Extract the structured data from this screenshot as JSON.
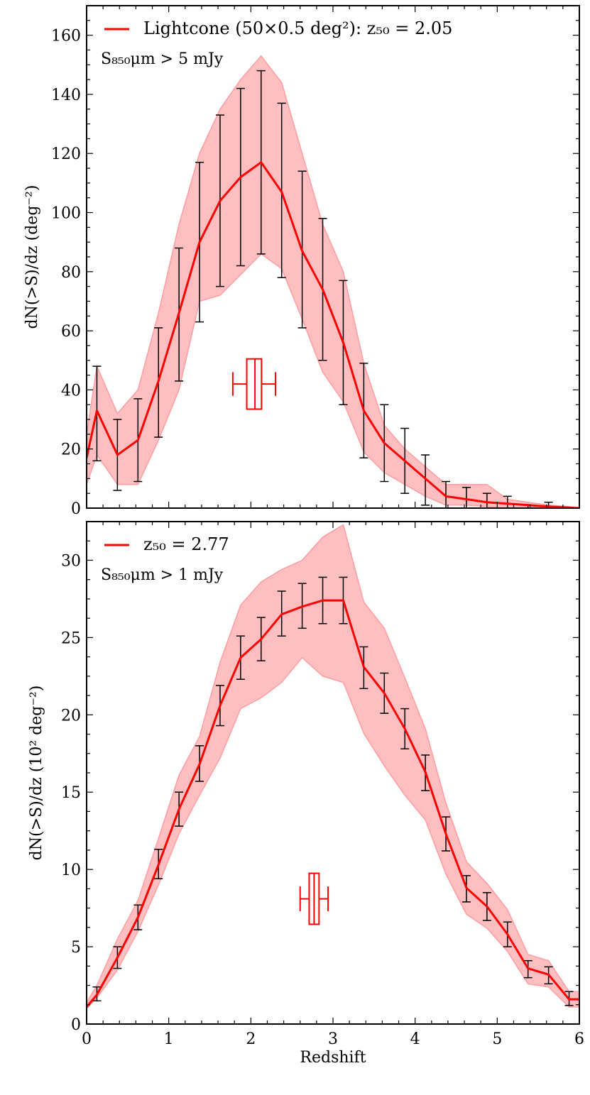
{
  "colors": {
    "line": "#ff0000",
    "band": "#ff9da0",
    "errorbar": "#000000",
    "box": "#ff0000",
    "axis": "#000000"
  },
  "chart_data": [
    {
      "type": "line",
      "panel": "top",
      "xlabel": "",
      "ylabel": "dN(>S)/dz (deg⁻²)",
      "xlim": [
        0,
        6
      ],
      "ylim": [
        0,
        170
      ],
      "yticks": [
        0,
        20,
        40,
        60,
        80,
        100,
        120,
        140,
        160
      ],
      "xticks": [
        0,
        1,
        2,
        3,
        4,
        5,
        6
      ],
      "show_x_tick_labels": false,
      "legend": {
        "position": "top-left",
        "label": "Lightcone (50×0.5 deg²): z₅₀ = 2.05"
      },
      "annotation": "S₈₅₀μm > 5 mJy",
      "series": [
        {
          "name": "Lightcone",
          "x": [
            0.0,
            0.125,
            0.375,
            0.625,
            0.875,
            1.125,
            1.375,
            1.625,
            1.875,
            2.125,
            2.375,
            2.625,
            2.875,
            3.125,
            3.375,
            3.625,
            3.875,
            4.125,
            4.375,
            4.625,
            4.875,
            5.125,
            5.375,
            5.625,
            5.875,
            6.0
          ],
          "y": [
            17,
            33,
            18,
            23,
            43,
            66,
            90,
            104,
            112,
            117,
            107,
            87,
            74,
            56,
            33,
            22,
            16,
            10,
            4,
            3,
            2,
            1.5,
            1,
            0.5,
            0.2,
            0
          ],
          "yerr_low": [
            null,
            16,
            6,
            9,
            24,
            43,
            63,
            75,
            82,
            86,
            78,
            61,
            50,
            35,
            17,
            9,
            5,
            1,
            0,
            0,
            0,
            0,
            0,
            0,
            null,
            null
          ],
          "yerr_high": [
            null,
            48,
            30,
            37,
            61,
            88,
            117,
            133,
            142,
            148,
            137,
            114,
            98,
            77,
            49,
            35,
            27,
            18,
            9,
            7,
            5,
            4,
            1,
            2,
            null,
            null
          ],
          "band_x": [
            0.0,
            0.125,
            0.375,
            0.625,
            0.875,
            1.125,
            1.375,
            1.625,
            1.875,
            2.125,
            2.375,
            2.625,
            2.875,
            3.125,
            3.375,
            3.625,
            3.875,
            4.125,
            4.375,
            4.625,
            4.875,
            5.125,
            5.375,
            5.625,
            5.875,
            6.0
          ],
          "band_low": [
            8,
            18,
            8,
            8,
            23,
            40,
            70,
            72,
            79,
            86,
            81,
            64,
            46,
            36,
            19,
            12,
            8,
            4,
            1,
            1,
            0.5,
            0,
            0,
            0,
            0,
            0
          ],
          "band_high": [
            25,
            48,
            32,
            40,
            66,
            96,
            120,
            135,
            145,
            153,
            144,
            120,
            96,
            80,
            49,
            28,
            20,
            14,
            8,
            8,
            8,
            3,
            2,
            1,
            0.5,
            0
          ]
        }
      ],
      "boxplot": {
        "whisker_low": 1.78,
        "q1": 1.95,
        "median": 2.05,
        "q3": 2.13,
        "whisker_high": 2.3,
        "center_y": 42,
        "half_height": 8.5,
        "cap_half_height": 4
      }
    },
    {
      "type": "line",
      "panel": "bottom",
      "xlabel": "Redshift",
      "ylabel": "dN(>S)/dz (10² deg⁻²)",
      "xlim": [
        0,
        6
      ],
      "ylim": [
        0,
        32.5
      ],
      "yticks": [
        0,
        5,
        10,
        15,
        20,
        25,
        30
      ],
      "xticks": [
        0,
        1,
        2,
        3,
        4,
        5,
        6
      ],
      "show_x_tick_labels": true,
      "legend": {
        "position": "top-left",
        "label": "z₅₀ = 2.77"
      },
      "annotation": "S₈₅₀μm > 1 mJy",
      "series": [
        {
          "name": "Lightcone",
          "x": [
            0.0,
            0.125,
            0.375,
            0.625,
            0.875,
            1.125,
            1.375,
            1.625,
            1.875,
            2.125,
            2.375,
            2.625,
            2.875,
            3.125,
            3.375,
            3.625,
            3.875,
            4.125,
            4.375,
            4.625,
            4.875,
            5.125,
            5.375,
            5.625,
            5.875,
            6.0
          ],
          "y": [
            1.1,
            1.9,
            4.3,
            6.9,
            10.3,
            13.9,
            16.8,
            20.6,
            23.7,
            24.9,
            26.5,
            27.0,
            27.4,
            27.4,
            23.1,
            21.4,
            19.1,
            16.3,
            12.3,
            8.8,
            7.6,
            5.8,
            3.6,
            3.2,
            1.6,
            1.6
          ],
          "yerr_low": [
            null,
            1.5,
            3.6,
            6.1,
            9.4,
            12.8,
            15.7,
            19.3,
            22.3,
            23.5,
            25.1,
            25.6,
            25.9,
            25.9,
            21.7,
            20.1,
            17.8,
            15.1,
            11.2,
            7.9,
            6.7,
            5.0,
            3.0,
            2.6,
            1.2,
            null
          ],
          "yerr_high": [
            null,
            2.4,
            5.0,
            7.7,
            11.3,
            15.0,
            18.0,
            21.9,
            25.1,
            26.3,
            28.0,
            28.5,
            28.9,
            28.9,
            24.4,
            22.7,
            20.4,
            17.4,
            13.4,
            9.6,
            8.5,
            6.6,
            4.1,
            3.7,
            2.1,
            null
          ],
          "band_x": [
            0.0,
            0.125,
            0.375,
            0.625,
            0.875,
            1.125,
            1.375,
            1.625,
            1.875,
            2.125,
            2.375,
            2.625,
            2.875,
            3.125,
            3.375,
            3.625,
            3.875,
            4.125,
            4.375,
            4.625,
            4.875,
            5.125,
            5.375,
            5.625,
            5.875,
            6.0
          ],
          "band_low": [
            1.0,
            1.7,
            3.5,
            6.0,
            9.0,
            12.3,
            14.8,
            17.2,
            20.4,
            21.1,
            22.1,
            23.7,
            22.5,
            22.1,
            18.8,
            16.7,
            14.8,
            13.2,
            9.7,
            7.1,
            6.2,
            4.7,
            2.6,
            2.4,
            1.1,
            1.1
          ],
          "band_high": [
            1.4,
            2.5,
            5.5,
            8.0,
            12.0,
            16.1,
            18.6,
            23.4,
            27.1,
            28.6,
            29.4,
            30.0,
            31.5,
            32.3,
            27.3,
            25.6,
            22.4,
            19.1,
            14.3,
            10.5,
            9.1,
            7.4,
            4.5,
            4.1,
            2.1,
            2.1
          ]
        }
      ],
      "boxplot": {
        "whisker_low": 2.6,
        "q1": 2.71,
        "median": 2.77,
        "q3": 2.83,
        "whisker_high": 2.94,
        "center_y": 8.1,
        "half_height": 1.65,
        "cap_half_height": 0.8
      }
    }
  ]
}
